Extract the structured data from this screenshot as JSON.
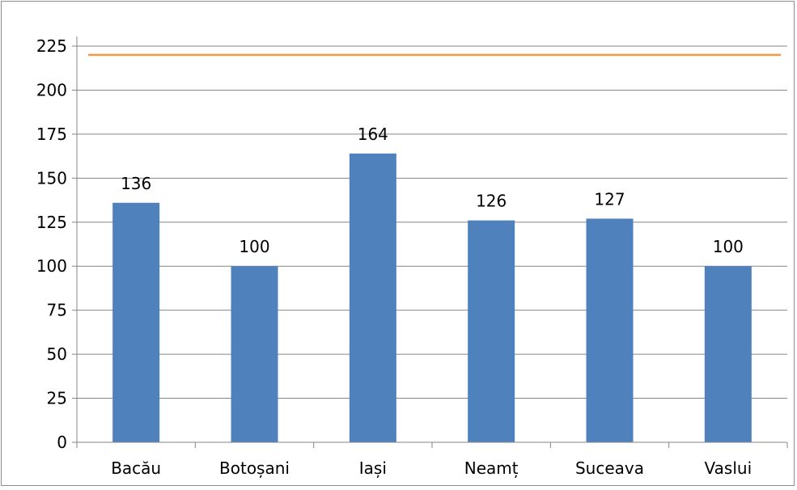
{
  "chart_data": {
    "type": "bar",
    "categories": [
      "Bacău",
      "Botoșani",
      "Iași",
      "Neamț",
      "Suceava",
      "Vaslui"
    ],
    "values": [
      136,
      100,
      164,
      126,
      127,
      100
    ],
    "data_labels": [
      "136",
      "100",
      "164",
      "126",
      "127",
      "100"
    ],
    "reference_line": {
      "value": 220
    },
    "y_ticks": [
      "0",
      "25",
      "50",
      "75",
      "100",
      "125",
      "150",
      "175",
      "200",
      "225"
    ],
    "ylim": [
      0,
      225
    ],
    "grid": true,
    "legend": "none",
    "colors": {
      "bar": "#4f81bd",
      "reference_line": "#f79646",
      "gridline": "#868686",
      "axis": "#868686"
    }
  }
}
